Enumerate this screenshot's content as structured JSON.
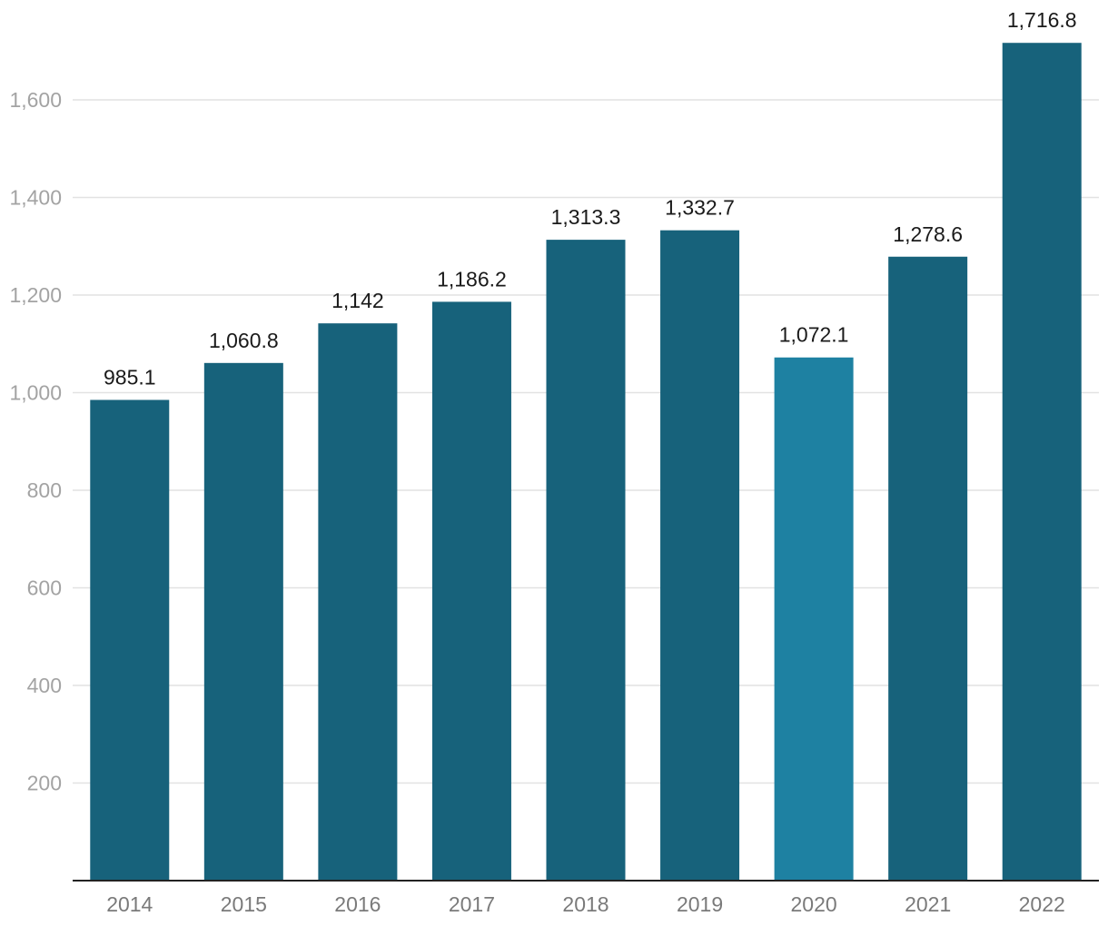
{
  "chart_data": {
    "type": "bar",
    "title": "",
    "xlabel": "",
    "ylabel": "",
    "categories": [
      "2014",
      "2015",
      "2016",
      "2017",
      "2018",
      "2019",
      "2020",
      "2021",
      "2022"
    ],
    "values": [
      985.1,
      1060.8,
      1142,
      1186.2,
      1313.3,
      1332.7,
      1072.1,
      1278.6,
      1716.8
    ],
    "value_labels": [
      "985.1",
      "1,060.8",
      "1,142",
      "1,186.2",
      "1,313.3",
      "1,332.7",
      "1,072.1",
      "1,278.6",
      "1,716.8"
    ],
    "y_ticks": [
      200,
      400,
      600,
      800,
      1000,
      1200,
      1400,
      1600
    ],
    "y_tick_labels": [
      "200",
      "400",
      "600",
      "800",
      "1,000",
      "1,200",
      "1,400",
      "1,600"
    ],
    "ylim": [
      0,
      1716.8
    ],
    "grid": true,
    "legend": "none",
    "colors": {
      "bar": "#17627b",
      "highlight_bar": "#1e81a2",
      "highlight_category": "2020"
    }
  }
}
